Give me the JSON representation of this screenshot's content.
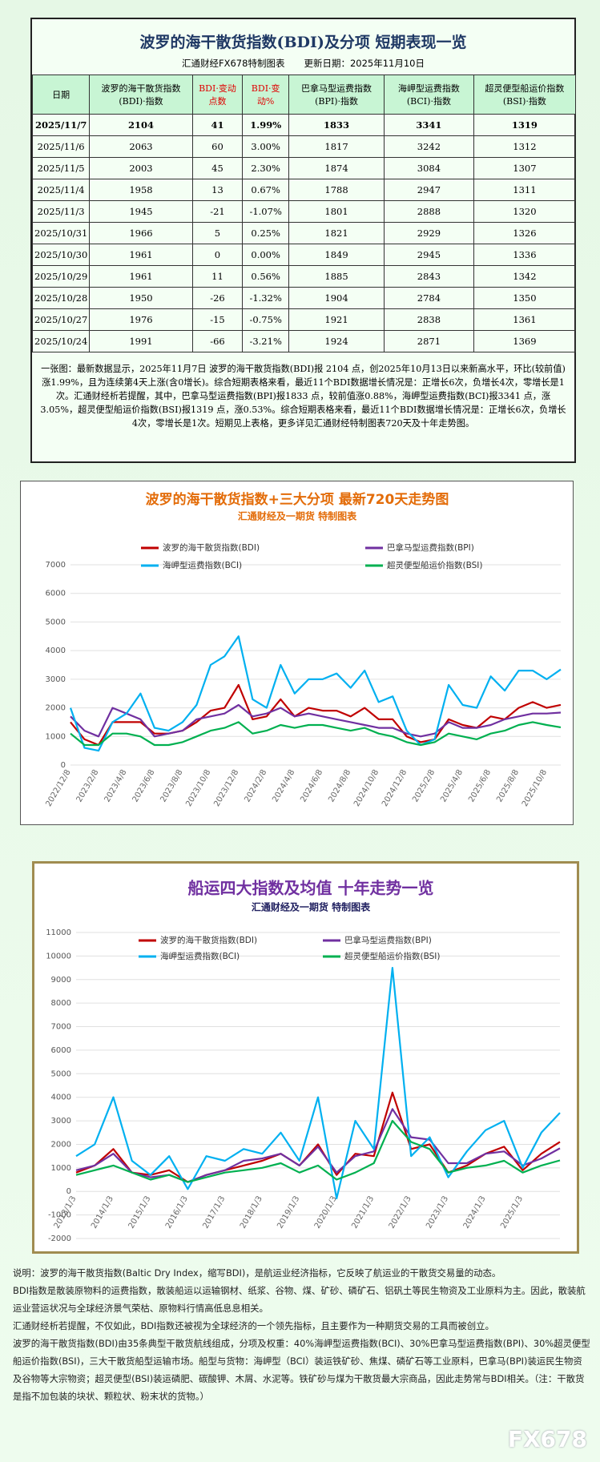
{
  "header": {
    "title": "波罗的海干散货指数(BDI)及分项 短期表现一览",
    "subtitle": "汇通财经FX678特制图表",
    "update": "更新日期：2025年11月10日"
  },
  "table": {
    "columns": [
      "日期",
      "波罗的海干散货指数(BDI)·指数",
      "BDI·变动点数",
      "BDI·变动%",
      "巴拿马型运费指数(BPI)·指数",
      "海岬型运费指数(BCI)·指数",
      "超灵便型船运价指数(BSI)·指数"
    ],
    "rows": [
      [
        "2025/11/7",
        "2104",
        "41",
        "1.99%",
        "1833",
        "3341",
        "1319"
      ],
      [
        "2025/11/6",
        "2063",
        "60",
        "3.00%",
        "1817",
        "3242",
        "1312"
      ],
      [
        "2025/11/5",
        "2003",
        "45",
        "2.30%",
        "1874",
        "3084",
        "1307"
      ],
      [
        "2025/11/4",
        "1958",
        "13",
        "0.67%",
        "1788",
        "2947",
        "1311"
      ],
      [
        "2025/11/3",
        "1945",
        "-21",
        "-1.07%",
        "1801",
        "2888",
        "1320"
      ],
      [
        "2025/10/31",
        "1966",
        "5",
        "0.25%",
        "1821",
        "2929",
        "1326"
      ],
      [
        "2025/10/30",
        "1961",
        "0",
        "0.00%",
        "1849",
        "2945",
        "1336"
      ],
      [
        "2025/10/29",
        "1961",
        "11",
        "0.56%",
        "1885",
        "2843",
        "1342"
      ],
      [
        "2025/10/28",
        "1950",
        "-26",
        "-1.32%",
        "1904",
        "2784",
        "1350"
      ],
      [
        "2025/10/27",
        "1976",
        "-15",
        "-0.75%",
        "1921",
        "2838",
        "1361"
      ],
      [
        "2025/10/24",
        "1991",
        "-66",
        "-3.21%",
        "1924",
        "2871",
        "1369"
      ]
    ]
  },
  "summary": "一张图：最新数据显示，2025年11月7日 波罗的海干散货指数(BDI)报 2104 点，创2025年10月13日以来新高水平，环比(较前值)涨1.99%，且为连续第4天上涨(含0增长)。综合短期表格来看，最近11个BDI数据增长情况是：正增长6次，负增长4次，零增长是1次。汇通财经析若提醒，其中，巴拿马型运费指数(BPI)报1833 点，较前值涨0.88%，海岬型运费指数(BCI)报3341 点，涨3.05%，超灵便型船运价指数(BSI)报1319 点，涨0.53%。综合短期表格来看，最近11个BDI数据增长情况是：正增长6次，负增长4次，零增长是1次。短期见上表格，更多详见汇通财经特制图表720天及十年走势图。",
  "chart_data": [
    {
      "type": "line",
      "title": "波罗的海干散货指数+三大分项  最新720天走势图",
      "subtitle": "汇通财经及一期货 特制图表",
      "grid": true,
      "legend": "top",
      "categories": [
        "2022/12/8",
        null,
        "2023/2/8",
        null,
        "2023/4/8",
        null,
        "2023/6/8",
        null,
        "2023/8/8",
        null,
        "2023/10/8",
        null,
        "2023/12/8",
        null,
        "2024/2/8",
        null,
        "2024/4/8",
        null,
        "2024/6/8",
        null,
        "2024/8/8",
        null,
        "2024/10/8",
        null,
        "2024/12/8",
        null,
        "2025/2/8",
        null,
        "2025/4/8",
        null,
        "2025/6/8",
        null,
        "2025/8/8",
        null,
        "2025/10/8",
        null
      ],
      "ylim": [
        0,
        7000
      ],
      "yticks": [
        0,
        1000,
        2000,
        3000,
        4000,
        5000,
        6000,
        7000
      ],
      "series": [
        {
          "name": "波罗的海干散货指数(BDI)",
          "color": "#c00000",
          "values": [
            1500,
            900,
            700,
            1500,
            1500,
            1500,
            1100,
            1100,
            1200,
            1500,
            1900,
            2000,
            2800,
            1600,
            1700,
            2300,
            1700,
            2000,
            1900,
            1900,
            1700,
            2000,
            1600,
            1600,
            1000,
            800,
            900,
            1600,
            1400,
            1300,
            1700,
            1600,
            2000,
            2200,
            2000,
            2104
          ]
        },
        {
          "name": "巴拿马型运费指数(BPI)",
          "color": "#7030a0",
          "values": [
            1700,
            1200,
            1000,
            2000,
            1800,
            1600,
            1000,
            1100,
            1200,
            1600,
            1700,
            1800,
            2100,
            1700,
            1800,
            2000,
            1700,
            1800,
            1700,
            1600,
            1500,
            1400,
            1300,
            1300,
            1100,
            1000,
            1100,
            1500,
            1300,
            1300,
            1400,
            1600,
            1700,
            1800,
            1800,
            1833
          ]
        },
        {
          "name": "海岬型运费指数(BCI)",
          "color": "#00b0f0",
          "values": [
            2000,
            600,
            500,
            1500,
            1800,
            2500,
            1300,
            1200,
            1500,
            2100,
            3500,
            3800,
            4500,
            2300,
            2000,
            3500,
            2500,
            3000,
            3000,
            3200,
            2700,
            3300,
            2200,
            2400,
            1200,
            700,
            900,
            2800,
            2100,
            2000,
            3100,
            2600,
            3300,
            3300,
            3000,
            3341
          ]
        },
        {
          "name": "超灵便型船运价指数(BSI)",
          "color": "#00b050",
          "values": [
            1100,
            700,
            700,
            1100,
            1100,
            1000,
            700,
            700,
            800,
            1000,
            1200,
            1300,
            1500,
            1100,
            1200,
            1400,
            1300,
            1400,
            1400,
            1300,
            1200,
            1300,
            1100,
            1000,
            800,
            700,
            800,
            1100,
            1000,
            900,
            1100,
            1200,
            1400,
            1500,
            1400,
            1319
          ]
        }
      ]
    },
    {
      "type": "line",
      "title": "船运四大指数及均值 十年走势一览",
      "subtitle": "汇通财经及一期货 特制图表",
      "grid": true,
      "legend": "top",
      "categories": [
        "2013/1/3",
        null,
        "2014/1/3",
        null,
        "2015/1/3",
        null,
        "2016/1/3",
        null,
        "2017/1/3",
        null,
        "2018/1/3",
        null,
        "2019/1/3",
        null,
        "2020/1/3",
        null,
        "2021/1/3",
        null,
        "2022/1/3",
        null,
        "2023/1/3",
        null,
        "2024/1/3",
        null,
        "2025/1/3",
        null,
        null
      ],
      "ylim": [
        -2000,
        11000
      ],
      "yticks": [
        -2000,
        -1000,
        0,
        1000,
        2000,
        3000,
        4000,
        5000,
        6000,
        7000,
        8000,
        9000,
        10000,
        11000
      ],
      "series": [
        {
          "name": "波罗的海干散货指数(BDI)",
          "color": "#c00000",
          "values": [
            800,
            1100,
            1800,
            800,
            700,
            900,
            400,
            700,
            900,
            1100,
            1300,
            1600,
            1100,
            2000,
            700,
            1600,
            1500,
            4200,
            1800,
            2000,
            800,
            1100,
            1600,
            1900,
            900,
            1600,
            2104
          ]
        },
        {
          "name": "巴拿马型运费指数(BPI)",
          "color": "#7030a0",
          "values": [
            900,
            1100,
            1600,
            800,
            600,
            700,
            400,
            700,
            900,
            1300,
            1400,
            1600,
            1100,
            1900,
            800,
            1500,
            1700,
            3500,
            2300,
            2200,
            1200,
            1200,
            1600,
            1700,
            1100,
            1400,
            1833
          ]
        },
        {
          "name": "海岬型运费指数(BCI)",
          "color": "#00b0f0",
          "values": [
            1500,
            2000,
            4000,
            1300,
            700,
            1500,
            100,
            1500,
            1300,
            1800,
            1600,
            2500,
            1300,
            4000,
            -300,
            3000,
            1800,
            9500,
            1500,
            2300,
            600,
            1700,
            2600,
            3000,
            1000,
            2500,
            3341
          ]
        },
        {
          "name": "超灵便型船运价指数(BSI)",
          "color": "#00b050",
          "values": [
            700,
            900,
            1100,
            800,
            500,
            700,
            400,
            600,
            800,
            900,
            1000,
            1200,
            800,
            1100,
            500,
            800,
            1200,
            3000,
            2100,
            1800,
            800,
            1000,
            1100,
            1300,
            800,
            1100,
            1319
          ]
        }
      ]
    }
  ],
  "notes": [
    "说明：波罗的海干散货指数(Baltic Dry Index，缩写BDI)，是航运业经济指标，它反映了航运业的干散货交易量的动态。",
    "BDI指数是散装原物料的运费指数，散装船运以运输钢材、纸浆、谷物、煤、矿砂、磷矿石、铝矾土等民生物资及工业原料为主。因此，散装航运业营运状况与全球经济景气荣枯、原物料行情高低息息相关。",
    "汇通财经析若提醒，不仅如此，BDI指数还被视为全球经济的一个领先指标，且主要作为一种期货交易的工具而被创立。",
    "波罗的海干散货指数(BDI)由35条典型干散货航线组成，分项及权重：40%海岬型运费指数(BCI)、30%巴拿马型运费指数(BPI)、30%超灵便型船运价指数(BSI)，三大干散货船型运输市场。船型与货物：海岬型（BCI）装运铁矿砂、焦煤、磷矿石等工业原料，巴拿马(BPI)装运民生物资及谷物等大宗物资；超灵便型(BSI)装运磷肥、碳酸钾、木屑、水泥等。铁矿砂与煤为干散货最大宗商品，因此走势常与BDI相关。（注：干散货是指不加包装的块状、颗粒状、粉末状的货物。）"
  ],
  "logo": "FX678"
}
